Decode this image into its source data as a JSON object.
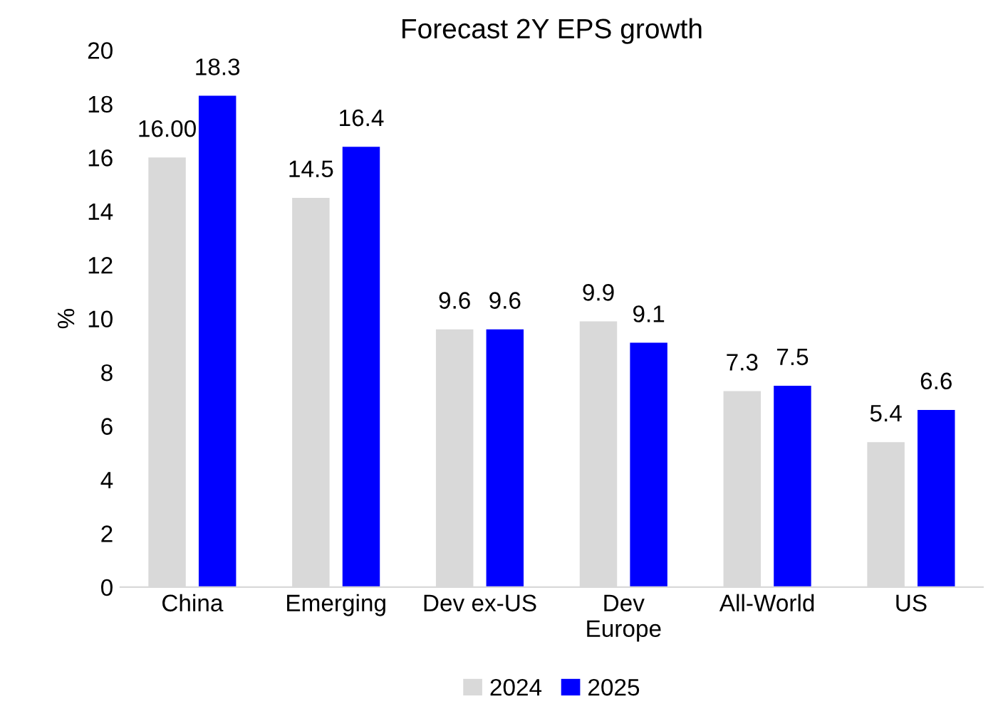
{
  "chart_data": {
    "type": "bar",
    "title": "Forecast 2Y EPS growth",
    "ylabel": "%",
    "categories": [
      "China",
      "Emerging",
      "Dev ex-US",
      "Dev\nEurope",
      "All-World",
      "US"
    ],
    "series": [
      {
        "name": "2024",
        "color": "#d9d9d9",
        "values": [
          16.0,
          14.5,
          9.6,
          9.9,
          7.3,
          5.4
        ],
        "value_labels": [
          "16.00",
          "14.5",
          "9.6",
          "9.9",
          "7.3",
          "5.4"
        ]
      },
      {
        "name": "2025",
        "color": "#0000ff",
        "values": [
          18.3,
          16.4,
          9.6,
          9.1,
          7.5,
          6.6
        ],
        "value_labels": [
          "18.3",
          "16.4",
          "9.6",
          "9.1",
          "7.5",
          "6.6"
        ]
      }
    ],
    "ylim": [
      0,
      20
    ],
    "yticks": [
      0,
      2,
      4,
      6,
      8,
      10,
      12,
      14,
      16,
      18,
      20
    ],
    "grid": false,
    "legend": "bottom"
  }
}
